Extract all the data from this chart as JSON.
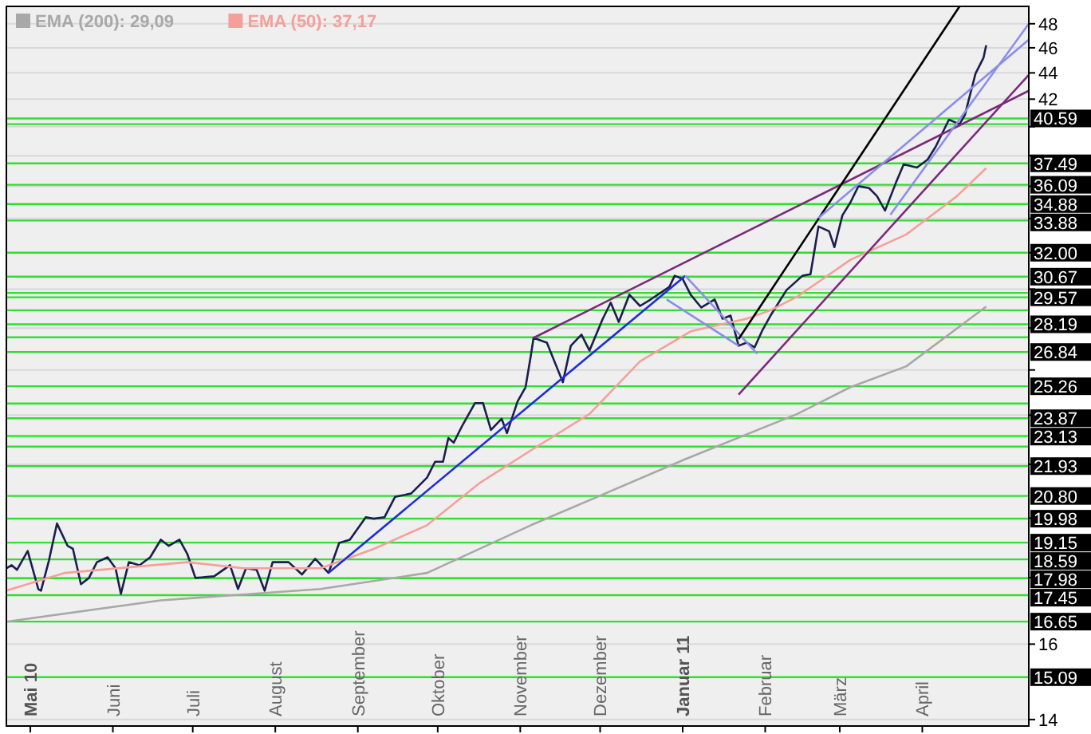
{
  "chart_data": {
    "type": "line",
    "xlim": [
      "2010-04-22",
      "2011-05-11"
    ],
    "xticks": [
      {
        "value": "2010-05-01",
        "label": "Mai 10"
      },
      {
        "value": "2010-06-01",
        "label": "Juni"
      },
      {
        "value": "2010-07-01",
        "label": "Juli"
      },
      {
        "value": "2010-08-01",
        "label": "August"
      },
      {
        "value": "2010-09-01",
        "label": "September"
      },
      {
        "value": "2010-10-01",
        "label": "Oktober"
      },
      {
        "value": "2010-11-01",
        "label": "November"
      },
      {
        "value": "2010-12-01",
        "label": "Dezember"
      },
      {
        "value": "2011-01-01",
        "label": "Januar 11"
      },
      {
        "value": "2011-02-01",
        "label": "Februar"
      },
      {
        "value": "2011-03-01",
        "label": "März"
      },
      {
        "value": "2011-04-01",
        "label": "April"
      }
    ],
    "ylim": [
      13.84,
      49.5
    ],
    "log": true,
    "grid": "y",
    "legend": "top left",
    "yticks": [
      14,
      16,
      {
        "value": 18,
        "label": null
      },
      {
        "value": 20,
        "label": null
      },
      {
        "value": 22,
        "label": null
      },
      {
        "value": 24,
        "label": null
      },
      {
        "value": 26,
        "label": null
      },
      {
        "value": 28,
        "label": null
      },
      {
        "value": 30,
        "label": null
      },
      {
        "value": 32,
        "label": null
      },
      {
        "value": 34,
        "label": null
      },
      {
        "value": 36,
        "label": null
      },
      {
        "value": 38,
        "label": null
      },
      {
        "value": 40,
        "label": null
      },
      42,
      44,
      46,
      48
    ],
    "series": [
      {
        "color": "#1a1f4d",
        "x": [
          "2010-04-22",
          "2010-04-24",
          "2010-04-26",
          "2010-04-30",
          "2010-05-04",
          "2010-05-05",
          "2010-05-08",
          "2010-05-11",
          "2010-05-15",
          "2010-05-17",
          "2010-05-20",
          "2010-05-23",
          "2010-05-26",
          "2010-05-30",
          "2010-06-02",
          "2010-06-04",
          "2010-06-07",
          "2010-06-11",
          "2010-06-15",
          "2010-06-19",
          "2010-06-22",
          "2010-06-26",
          "2010-06-29",
          "2010-07-02",
          "2010-07-09",
          "2010-07-15",
          "2010-07-18",
          "2010-07-21",
          "2010-07-25",
          "2010-07-28",
          "2010-07-31",
          "2010-08-06",
          "2010-08-11",
          "2010-08-16",
          "2010-08-21",
          "2010-08-25",
          "2010-08-29",
          "2010-09-04",
          "2010-09-07",
          "2010-09-11",
          "2010-09-15",
          "2010-09-21",
          "2010-09-27",
          "2010-09-30",
          "2010-10-03",
          "2010-10-05",
          "2010-10-07",
          "2010-10-10",
          "2010-10-15",
          "2010-10-18",
          "2010-10-21",
          "2010-10-25",
          "2010-10-27",
          "2010-10-31",
          "2010-11-03",
          "2010-11-05",
          "2010-11-06",
          "2010-11-11",
          "2010-11-17",
          "2010-11-20",
          "2010-11-24",
          "2010-11-27",
          "2010-12-02",
          "2010-12-05",
          "2010-12-08",
          "2010-12-12",
          "2010-12-16",
          "2010-12-20",
          "2010-12-27",
          "2010-12-29",
          "2011-01-01",
          "2011-01-04",
          "2011-01-08",
          "2011-01-13",
          "2011-01-16",
          "2011-01-19",
          "2011-01-22",
          "2011-01-25",
          "2011-01-28",
          "2011-01-31",
          "2011-02-03",
          "2011-02-09",
          "2011-02-15",
          "2011-02-18",
          "2011-02-21",
          "2011-02-25",
          "2011-02-27",
          "2011-03-02",
          "2011-03-05",
          "2011-03-08",
          "2011-03-12",
          "2011-03-15",
          "2011-03-18",
          "2011-03-22",
          "2011-03-25",
          "2011-03-30",
          "2011-04-03",
          "2011-04-06",
          "2011-04-11",
          "2011-04-15",
          "2011-04-17",
          "2011-04-21",
          "2011-04-24",
          "2011-04-25"
        ],
        "values": [
          18.3,
          18.4,
          18.25,
          18.87,
          17.64,
          17.59,
          18.56,
          19.81,
          19.04,
          18.94,
          17.79,
          17.99,
          18.5,
          18.66,
          18.3,
          17.49,
          18.5,
          18.4,
          18.66,
          19.25,
          19.04,
          19.25,
          18.76,
          17.99,
          18.04,
          18.4,
          17.64,
          18.3,
          18.25,
          17.59,
          18.5,
          18.5,
          18.1,
          18.61,
          18.15,
          19.14,
          19.25,
          20.03,
          19.98,
          20.03,
          20.77,
          20.89,
          21.49,
          22.1,
          22.1,
          23.05,
          22.86,
          23.51,
          24.52,
          24.52,
          23.38,
          23.85,
          23.25,
          24.59,
          25.22,
          26.69,
          27.52,
          27.29,
          25.44,
          27.14,
          27.68,
          26.91,
          28.47,
          29.29,
          28.31,
          29.71,
          29.12,
          29.46,
          30.12,
          30.72,
          30.55,
          29.71,
          29.04,
          29.46,
          28.47,
          28.63,
          27.14,
          27.29,
          27.06,
          27.91,
          28.63,
          29.95,
          30.72,
          30.8,
          33.52,
          33.24,
          32.32,
          34.19,
          34.98,
          36.0,
          35.88,
          35.37,
          34.48,
          36.18,
          37.42,
          37.21,
          37.74,
          38.6,
          40.5,
          40.18,
          40.84,
          43.95,
          45.2,
          46.2
        ]
      },
      {
        "name": "EMA (200): 29,09",
        "color": "#a8a8a8",
        "x": [
          "2010-04-22",
          "2010-06-19",
          "2010-08-18",
          "2010-09-27",
          "2010-11-05",
          "2011-01-02",
          "2011-02-13",
          "2011-03-05",
          "2011-03-26",
          "2011-04-25"
        ],
        "values": [
          16.65,
          17.29,
          17.64,
          18.15,
          19.75,
          22.2,
          24.05,
          25.22,
          26.17,
          29.09
        ]
      },
      {
        "name": "EMA (50): 37,17",
        "color": "#f4a09a",
        "x": [
          "2010-04-22",
          "2010-05-14",
          "2010-06-29",
          "2010-07-20",
          "2010-08-18",
          "2010-09-07",
          "2010-09-27",
          "2010-10-17",
          "2010-11-05",
          "2010-11-27",
          "2010-12-16",
          "2011-01-04",
          "2011-01-25",
          "2011-02-03",
          "2011-02-13",
          "2011-03-05",
          "2011-03-26",
          "2011-04-14",
          "2011-04-25"
        ],
        "values": [
          17.59,
          18.15,
          18.5,
          18.3,
          18.3,
          18.94,
          19.75,
          21.3,
          22.55,
          24.05,
          26.4,
          27.84,
          28.47,
          28.9,
          29.6,
          31.6,
          33.05,
          35.37,
          37.17
        ]
      },
      {
        "color": "#1f2fd6",
        "x": [
          "2010-08-21",
          "2011-01-02"
        ],
        "values": [
          18.15,
          30.72
        ]
      },
      {
        "color": "#8a8ee8",
        "x": [
          "2011-01-02",
          "2011-01-29"
        ],
        "values": [
          30.72,
          26.76
        ]
      },
      {
        "color": "#8a8ee8",
        "x": [
          "2010-12-26",
          "2011-01-22"
        ],
        "values": [
          29.46,
          27.14
        ]
      },
      {
        "color": "#7a2a7a",
        "x": [
          "2010-11-06",
          "2011-05-11"
        ],
        "values": [
          27.52,
          42.63
        ]
      },
      {
        "color": "#7a2a7a",
        "x": [
          "2011-01-22",
          "2011-05-11"
        ],
        "values": [
          24.89,
          43.85
        ]
      },
      {
        "color": "#000000",
        "x": [
          "2011-01-22",
          "2011-04-15"
        ],
        "values": [
          27.46,
          49.5
        ]
      },
      {
        "color": "#8a8ee8",
        "x": [
          "2011-02-21",
          "2011-05-11"
        ],
        "values": [
          34.03,
          46.66
        ]
      },
      {
        "color": "#8a8ee8",
        "x": [
          "2011-03-20",
          "2011-05-11"
        ],
        "values": [
          34.22,
          48.0
        ]
      }
    ],
    "ref_lines": [
      {
        "axis": "y",
        "value": 40.59,
        "label": "40.59",
        "color": "#33dd33"
      },
      {
        "axis": "y",
        "value": 40.18,
        "label": null,
        "color": "#33dd33"
      },
      {
        "axis": "y",
        "value": 37.49,
        "label": "37.49",
        "color": "#33dd33"
      },
      {
        "axis": "y",
        "value": 36.09,
        "label": "36.09",
        "color": "#33dd33"
      },
      {
        "axis": "y",
        "value": 34.88,
        "label": "34.88",
        "color": "#33dd33"
      },
      {
        "axis": "y",
        "value": 33.88,
        "label": "33.88",
        "color": "#33dd33"
      },
      {
        "axis": "y",
        "value": 32.0,
        "label": "32.00",
        "color": "#33dd33"
      },
      {
        "axis": "y",
        "value": 30.67,
        "label": "30.67",
        "color": "#33dd33"
      },
      {
        "axis": "y",
        "value": 29.8,
        "label": null,
        "color": "#33dd33"
      },
      {
        "axis": "y",
        "value": 29.57,
        "label": "29.57",
        "color": "#33dd33"
      },
      {
        "axis": "y",
        "value": 28.9,
        "label": null,
        "color": "#33dd33"
      },
      {
        "axis": "y",
        "value": 28.19,
        "label": "28.19",
        "color": "#33dd33"
      },
      {
        "axis": "y",
        "value": 27.55,
        "label": null,
        "color": "#33dd33"
      },
      {
        "axis": "y",
        "value": 26.84,
        "label": "26.84",
        "color": "#33dd33"
      },
      {
        "axis": "y",
        "value": 25.26,
        "label": "25.26",
        "color": "#33dd33"
      },
      {
        "axis": "y",
        "value": 24.5,
        "label": null,
        "color": "#33dd33"
      },
      {
        "axis": "y",
        "value": 23.87,
        "label": "23.87",
        "color": "#33dd33"
      },
      {
        "axis": "y",
        "value": 23.13,
        "label": "23.13",
        "color": "#22ee22"
      },
      {
        "axis": "y",
        "value": 22.7,
        "label": null,
        "color": "#33dd33"
      },
      {
        "axis": "y",
        "value": 21.93,
        "label": "21.93",
        "color": "#33dd33"
      },
      {
        "axis": "y",
        "value": 20.8,
        "label": "20.80",
        "color": "#33dd33"
      },
      {
        "axis": "y",
        "value": 19.98,
        "label": "19.98",
        "color": "#33dd33"
      },
      {
        "axis": "y",
        "value": 19.15,
        "label": "19.15",
        "color": "#33dd33"
      },
      {
        "axis": "y",
        "value": 18.59,
        "label": "18.59",
        "color": "#33dd33"
      },
      {
        "axis": "y",
        "value": 17.98,
        "label": "17.98",
        "color": "#33dd33"
      },
      {
        "axis": "y",
        "value": 17.45,
        "label": "17.45",
        "color": "#33dd33"
      },
      {
        "axis": "y",
        "value": 16.65,
        "label": "16.65",
        "color": "#33dd33"
      },
      {
        "axis": "y",
        "value": 15.09,
        "label": "15.09",
        "color": "#33dd33"
      }
    ]
  }
}
